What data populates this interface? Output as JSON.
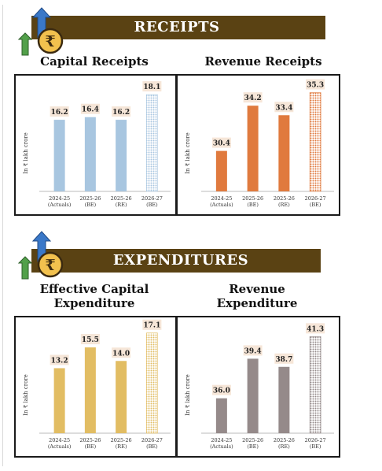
{
  "sections": {
    "receipts": {
      "title": "RECEIPTS"
    },
    "expenditures": {
      "title": "EXPENDITURES"
    }
  },
  "colors": {
    "banner": "#5a4213",
    "capital_receipts": "#a8c6e0",
    "revenue_receipts": "#e07a3e",
    "capital_expenditure": "#e2bd63",
    "revenue_expenditure": "#958a8a"
  },
  "icons": [
    "rupee-coin-icon",
    "arrow-up-icon"
  ],
  "chart_data": [
    {
      "type": "bar",
      "title": "Capital Receipts",
      "ylabel": "In ₹ lakh crore",
      "categories": [
        "2024-25 (Actuals)",
        "2025-26 (BE)",
        "2025-26 (RE)",
        "2026-27 (BE)"
      ],
      "tick_lines": [
        [
          "2024-25",
          "(Actuals)"
        ],
        [
          "2025-26",
          "(BE)"
        ],
        [
          "2025-26",
          "(RE)"
        ],
        [
          "2026-27",
          "(BE)"
        ]
      ],
      "values": [
        16.2,
        16.4,
        16.2,
        18.1
      ],
      "labels": [
        "16.2",
        "16.4",
        "16.2",
        "18.1"
      ],
      "ylim": [
        10.8,
        18.7
      ],
      "color": "#a8c6e0",
      "grid": false
    },
    {
      "type": "bar",
      "title": "Revenue Receipts",
      "ylabel": "In ₹ lakh crore",
      "categories": [
        "2024-25 (Actuals)",
        "2025-26 (BE)",
        "2025-26 (RE)",
        "2026-27 (BE)"
      ],
      "tick_lines": [
        [
          "2024-25",
          "(Actuals)"
        ],
        [
          "2025-26",
          "(BE)"
        ],
        [
          "2025-26",
          "(RE)"
        ],
        [
          "2026-27",
          "(BE)"
        ]
      ],
      "values": [
        30.4,
        34.2,
        33.4,
        35.3
      ],
      "labels": [
        "30.4",
        "34.2",
        "33.4",
        "35.3"
      ],
      "ylim": [
        27.0,
        35.8
      ],
      "color": "#e07a3e",
      "grid": false
    },
    {
      "type": "bar",
      "title": "Effective Capital Expenditure",
      "ylabel": "In ₹ lakh crore",
      "categories": [
        "2024-25 (Actuals)",
        "2025-26 (BE)",
        "2025-26 (RE)",
        "2026-27 (BE)"
      ],
      "tick_lines": [
        [
          "2024-25",
          "(Actuals)"
        ],
        [
          "2025-26",
          "(BE)"
        ],
        [
          "2025-26",
          "(RE)"
        ],
        [
          "2026-27",
          "(BE)"
        ]
      ],
      "values": [
        13.2,
        15.5,
        14.0,
        17.1
      ],
      "labels": [
        "13.2",
        "15.5",
        "14.0",
        "17.1"
      ],
      "ylim": [
        6.0,
        17.6
      ],
      "color": "#e2bd63",
      "grid": false
    },
    {
      "type": "bar",
      "title": "Revenue Expenditure",
      "ylabel": "In ₹ lakh crore",
      "categories": [
        "2024-25 (Actuals)",
        "2025-26 (BE)",
        "2025-26 (RE)",
        "2026-27 (BE)"
      ],
      "tick_lines": [
        [
          "2024-25",
          "(Actuals)"
        ],
        [
          "2025-26",
          "(BE)"
        ],
        [
          "2025-26",
          "(RE)"
        ],
        [
          "2026-27",
          "(BE)"
        ]
      ],
      "values": [
        36.0,
        39.4,
        38.7,
        41.3
      ],
      "labels": [
        "36.0",
        "39.4",
        "38.7",
        "41.3"
      ],
      "ylim": [
        33.0,
        42.0
      ],
      "color": "#958a8a",
      "grid": false
    }
  ]
}
